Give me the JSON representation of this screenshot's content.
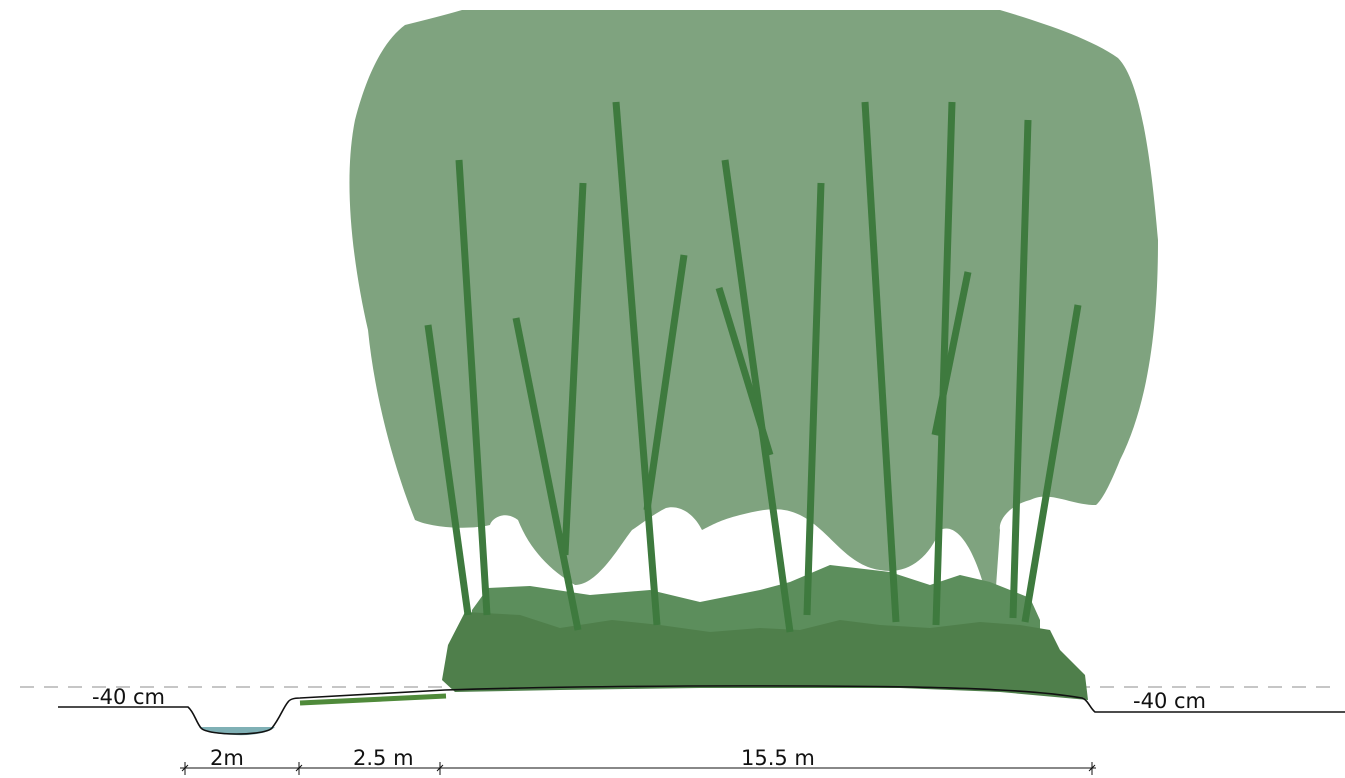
{
  "labels": {
    "left_depth": "-40 cm",
    "right_depth": "-40 cm"
  },
  "dimensions": [
    {
      "label": "2m"
    },
    {
      "label": "2.5 m"
    },
    {
      "label": "15.5 m"
    }
  ],
  "colors": {
    "canopy": "#7fa37f",
    "shrub_light": "#5c8e5c",
    "shrub_dark": "#4f7f4b",
    "stem": "#3e7a3e",
    "water": "#7fb0b5",
    "ground_line": "#111111",
    "reference_line": "#b4b4b4",
    "mulch_strip": "#4f8a3a"
  }
}
